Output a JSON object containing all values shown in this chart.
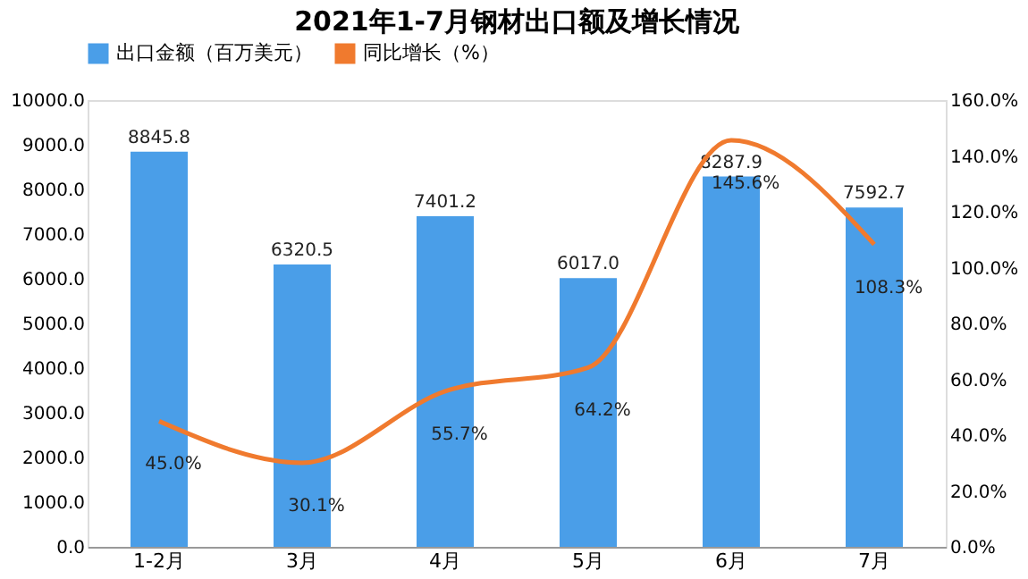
{
  "chart_data": {
    "type": "bar",
    "title": "2021年1-7月钢材出口额及增长情况",
    "categories": [
      "1-2月",
      "3月",
      "4月",
      "5月",
      "6月",
      "7月"
    ],
    "series": [
      {
        "name": "出口金额（百万美元）",
        "color": "#4a9ee8",
        "values": [
          8845.8,
          6320.5,
          7401.2,
          6017.0,
          8287.9,
          7592.7
        ],
        "value_labels": [
          "8845.8",
          "6320.5",
          "7401.2",
          "6017.0",
          "8287.9",
          "7592.7"
        ]
      },
      {
        "name": "同比增长（%）",
        "type": "line",
        "axis": "y2",
        "color": "#f07a2e",
        "values": [
          45.0,
          30.1,
          55.7,
          64.2,
          145.6,
          108.3
        ],
        "value_labels": [
          "45.0%",
          "30.1%",
          "55.7%",
          "64.2%",
          "145.6%",
          "108.3%"
        ]
      }
    ],
    "ylim": [
      0,
      10000
    ],
    "yticks": [
      {
        "value": 0,
        "label": "0.0"
      },
      {
        "value": 1000,
        "label": "1000.0"
      },
      {
        "value": 2000,
        "label": "2000.0"
      },
      {
        "value": 3000,
        "label": "3000.0"
      },
      {
        "value": 4000,
        "label": "4000.0"
      },
      {
        "value": 5000,
        "label": "5000.0"
      },
      {
        "value": 6000,
        "label": "6000.0"
      },
      {
        "value": 7000,
        "label": "7000.0"
      },
      {
        "value": 8000,
        "label": "8000.0"
      },
      {
        "value": 9000,
        "label": "9000.0"
      },
      {
        "value": 10000,
        "label": "10000.0"
      }
    ],
    "y2lim": [
      0,
      160
    ],
    "y2ticks": [
      {
        "value": 0,
        "label": "0.0%"
      },
      {
        "value": 20,
        "label": "20.0%"
      },
      {
        "value": 40,
        "label": "40.0%"
      },
      {
        "value": 60,
        "label": "60.0%"
      },
      {
        "value": 80,
        "label": "80.0%"
      },
      {
        "value": 100,
        "label": "100.0%"
      },
      {
        "value": 120,
        "label": "120.0%"
      },
      {
        "value": 140,
        "label": "140.0%"
      },
      {
        "value": 160,
        "label": "160.0%"
      }
    ],
    "legend": "top",
    "grid": false
  }
}
